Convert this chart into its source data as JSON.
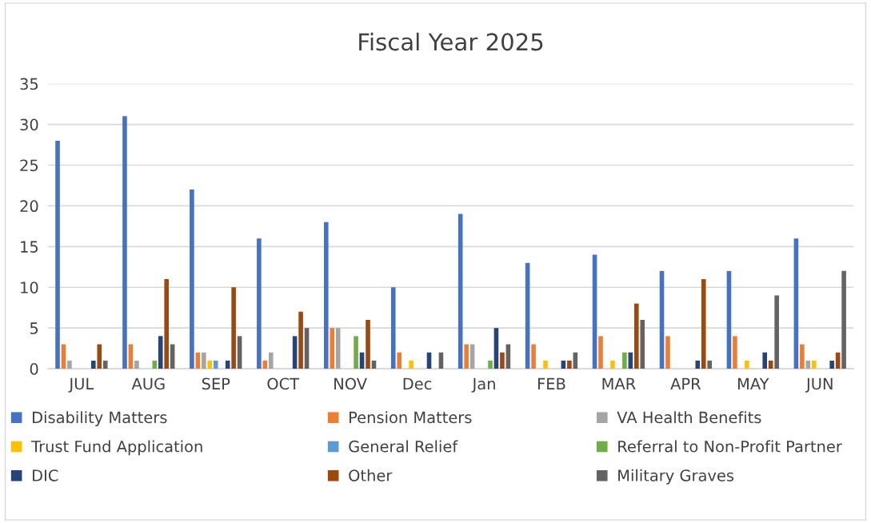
{
  "chart_data": {
    "type": "bar",
    "title": "Fiscal Year 2025",
    "categories": [
      "JUL",
      "AUG",
      "SEP",
      "OCT",
      "NOV",
      "Dec",
      "Jan",
      "FEB",
      "MAR",
      "APR",
      "MAY",
      "JUN"
    ],
    "series": [
      {
        "name": "Disability Matters",
        "color": "#4472c4",
        "values": [
          28,
          31,
          22,
          16,
          18,
          10,
          19,
          13,
          14,
          12,
          12,
          16
        ]
      },
      {
        "name": "Pension Matters",
        "color": "#ed7d31",
        "values": [
          3,
          3,
          2,
          1,
          5,
          2,
          3,
          3,
          4,
          4,
          4,
          3
        ]
      },
      {
        "name": "VA Health Benefits",
        "color": "#a5a5a5",
        "values": [
          1,
          1,
          2,
          2,
          5,
          null,
          3,
          null,
          null,
          null,
          null,
          1
        ]
      },
      {
        "name": "Trust Fund Application",
        "color": "#ffc000",
        "values": [
          null,
          null,
          1,
          null,
          null,
          1,
          null,
          1,
          1,
          null,
          1,
          1
        ]
      },
      {
        "name": "General Relief",
        "color": "#5b9bd5",
        "values": [
          null,
          null,
          1,
          null,
          null,
          null,
          null,
          null,
          null,
          null,
          null,
          null
        ]
      },
      {
        "name": "Referral to Non-Profit Partner",
        "color": "#70ad47",
        "values": [
          null,
          1,
          null,
          null,
          4,
          null,
          1,
          null,
          2,
          null,
          null,
          null
        ]
      },
      {
        "name": "DIC",
        "color": "#264478",
        "values": [
          1,
          4,
          1,
          4,
          2,
          2,
          5,
          1,
          2,
          1,
          2,
          1
        ]
      },
      {
        "name": "Other",
        "color": "#9e480e",
        "values": [
          3,
          11,
          10,
          7,
          6,
          null,
          2,
          1,
          8,
          11,
          1,
          2
        ]
      },
      {
        "name": "Military Graves",
        "color": "#636363",
        "values": [
          1,
          3,
          4,
          5,
          1,
          2,
          3,
          2,
          6,
          1,
          9,
          12
        ]
      }
    ],
    "ylim": [
      0,
      35
    ],
    "yticks": [
      0,
      5,
      10,
      15,
      20,
      25,
      30,
      35
    ],
    "grid": "y",
    "legend": "bottom"
  }
}
